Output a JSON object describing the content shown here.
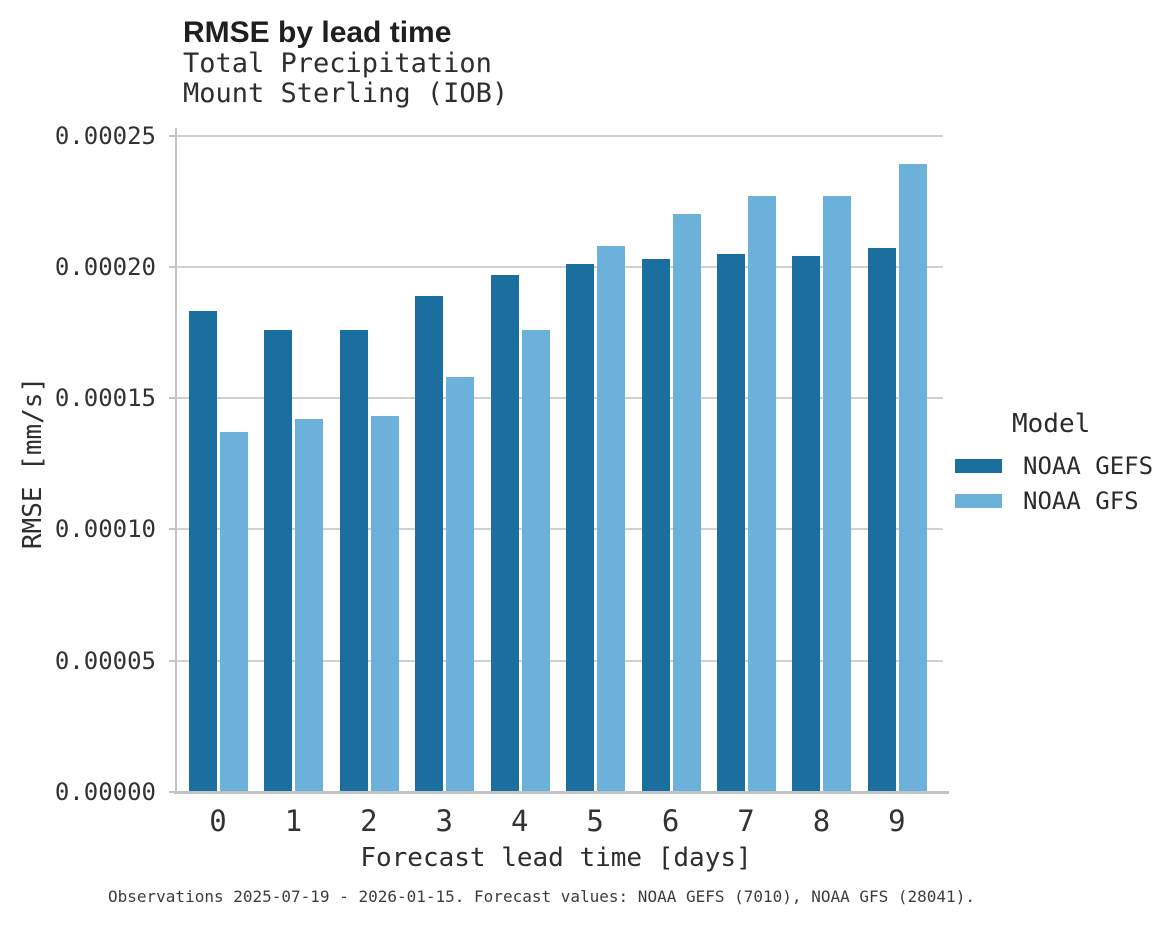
{
  "title": "RMSE by lead time",
  "subtitle_line1": "Total Precipitation",
  "subtitle_line2": "Mount Sterling (IOB)",
  "footer": "Observations 2025-07-19 - 2026-01-15. Forecast values: NOAA GEFS (7010), NOAA GFS (28041).",
  "legend": {
    "title": "Model",
    "entries": [
      {
        "label": "NOAA GEFS",
        "color": "#1a6f9e"
      },
      {
        "label": "NOAA GFS",
        "color": "#6cb1d9"
      }
    ]
  },
  "colors": {
    "gefs_bar": "#1a6f9e",
    "gfs_bar": "#6cb1d9",
    "gridline": "#d0d0d0",
    "spine": "#c3c3c3"
  },
  "chart_data": {
    "type": "bar",
    "title": "RMSE by lead time",
    "subtitle": [
      "Total Precipitation",
      "Mount Sterling (IOB)"
    ],
    "xlabel": "Forecast lead time [days]",
    "ylabel": "RMSE [mm/s]",
    "categories": [
      "0",
      "1",
      "2",
      "3",
      "4",
      "5",
      "6",
      "7",
      "8",
      "9"
    ],
    "series": [
      {
        "name": "NOAA GEFS",
        "color": "#1a6f9e",
        "values": [
          0.000183,
          0.000176,
          0.000176,
          0.000189,
          0.000197,
          0.000201,
          0.000203,
          0.000205,
          0.000204,
          0.000207
        ]
      },
      {
        "name": "NOAA GFS",
        "color": "#6cb1d9",
        "values": [
          0.000137,
          0.000142,
          0.000143,
          0.000158,
          0.000176,
          0.000208,
          0.00022,
          0.000227,
          0.000227,
          0.000239
        ]
      }
    ],
    "ylim": [
      0,
      0.00025
    ],
    "yticks": [
      0,
      5e-05,
      0.0001,
      0.00015,
      0.0002,
      0.00025
    ],
    "ytick_labels": [
      "0.00000",
      "0.00005",
      "0.00010",
      "0.00015",
      "0.00020",
      "0.00025"
    ],
    "grid": true,
    "legend_title": "Model",
    "legend_position": "right"
  }
}
